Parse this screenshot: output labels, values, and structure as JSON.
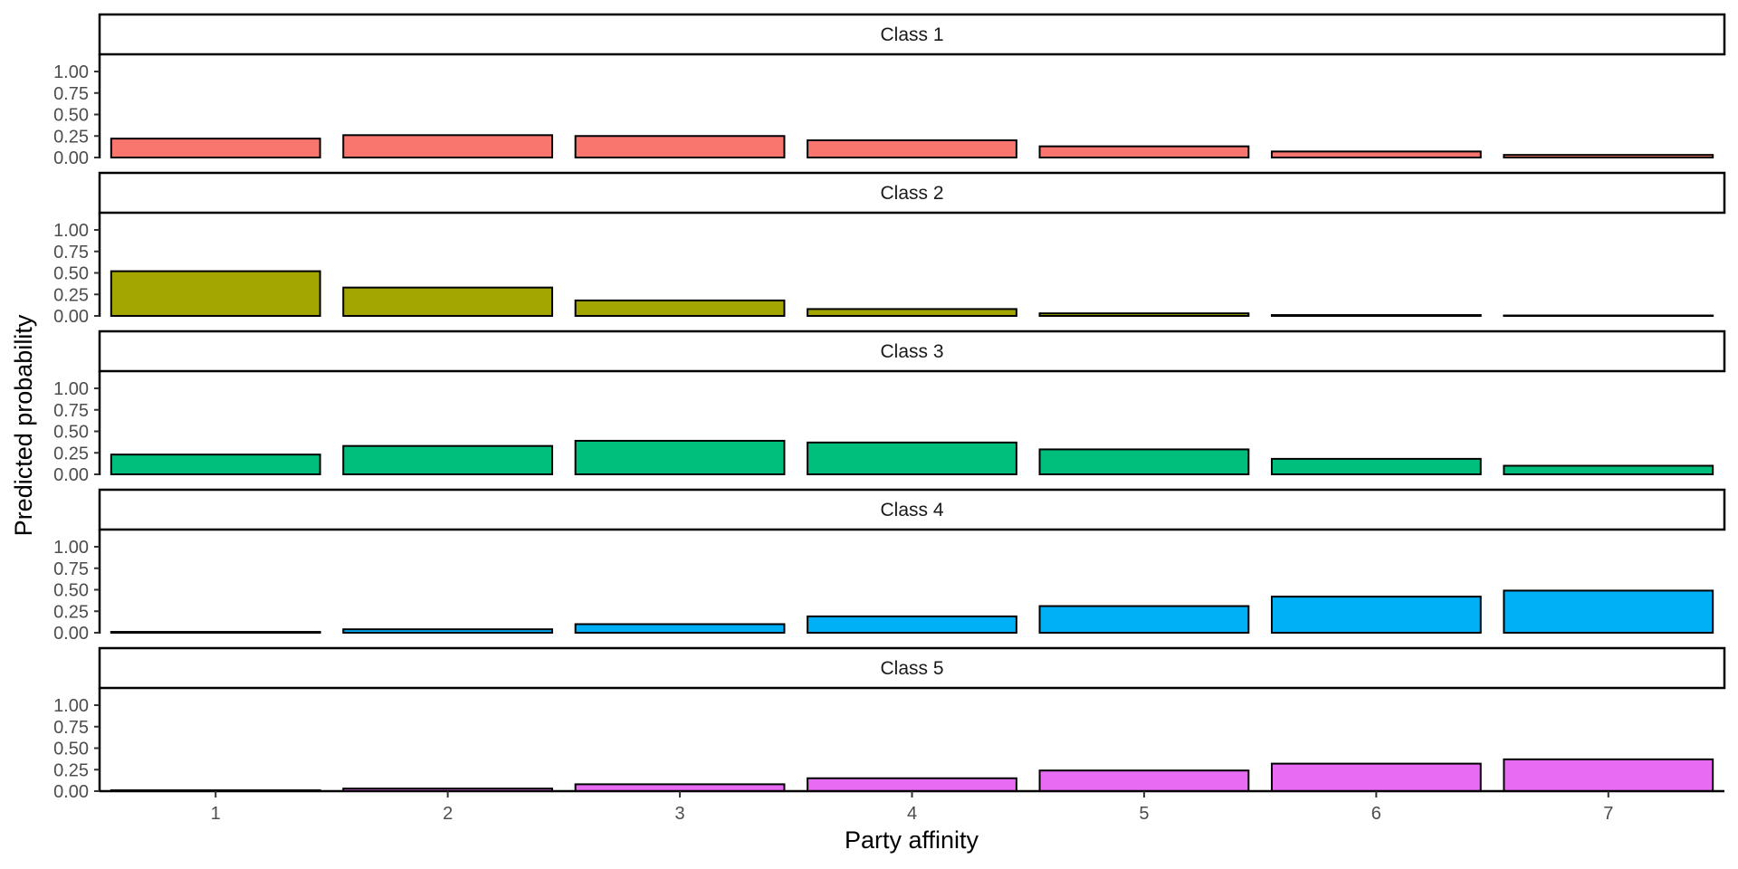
{
  "chart_data": {
    "type": "bar",
    "facet_layout": "stacked rows, shared x-axis",
    "xlabel": "Party affinity",
    "ylabel": "Predicted probability",
    "categories": [
      "1",
      "2",
      "3",
      "4",
      "5",
      "6",
      "7"
    ],
    "ylim": [
      0,
      1.2
    ],
    "yticks": [
      "0.00",
      "0.25",
      "0.50",
      "0.75",
      "1.00"
    ],
    "ytick_values": [
      0,
      0.25,
      0.5,
      0.75,
      1.0
    ],
    "grid": false,
    "legend": "none",
    "bar_outline_color": "#000000",
    "series": [
      {
        "name": "Class 1",
        "color": "#F8766D",
        "values": [
          0.22,
          0.26,
          0.25,
          0.2,
          0.13,
          0.07,
          0.03
        ]
      },
      {
        "name": "Class 2",
        "color": "#A3A500",
        "values": [
          0.52,
          0.33,
          0.18,
          0.08,
          0.03,
          0.01,
          0.005
        ]
      },
      {
        "name": "Class 3",
        "color": "#00BF7D",
        "values": [
          0.23,
          0.33,
          0.39,
          0.37,
          0.29,
          0.18,
          0.1
        ]
      },
      {
        "name": "Class 4",
        "color": "#00B0F6",
        "values": [
          0.01,
          0.04,
          0.1,
          0.19,
          0.31,
          0.42,
          0.49
        ]
      },
      {
        "name": "Class 5",
        "color": "#E76BF3",
        "values": [
          0.01,
          0.03,
          0.08,
          0.15,
          0.24,
          0.32,
          0.37
        ]
      }
    ]
  }
}
